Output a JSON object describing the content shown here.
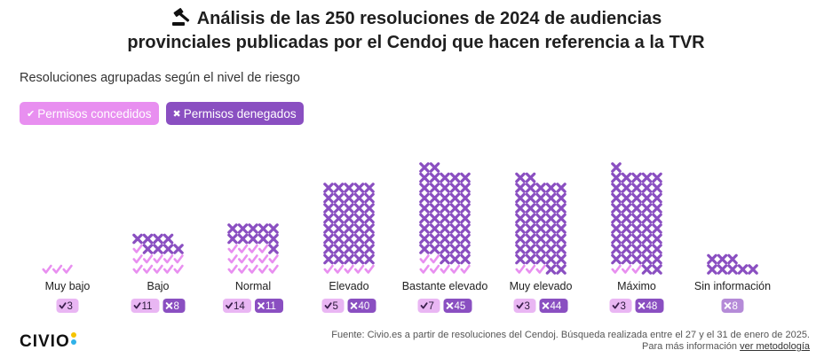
{
  "title_line1": "Análisis de las 250 resoluciones de 2024 de audiencias",
  "title_line2": "provinciales publicadas por el Cendoj que hacen referencia a la TVR",
  "subtitle": "Resoluciones agrupadas según el nivel de riesgo",
  "legend": {
    "granted_label": "Permisos concedidos",
    "denied_label": "Permisos denegados",
    "granted_symbol": "✔",
    "denied_symbol": "✖"
  },
  "colors": {
    "granted": "#e88ff0",
    "denied": "#8a4fc1",
    "granted_badge": "#e9b6f3",
    "denied_badge": "#8a4fc1",
    "single_badge": "#b58bd8"
  },
  "chart_data": {
    "type": "waffle",
    "units_per_row": 5,
    "categories": [
      "Muy bajo",
      "Bajo",
      "Normal",
      "Elevado",
      "Bastante elevado",
      "Muy elevado",
      "Máximo",
      "Sin información"
    ],
    "series": [
      {
        "name": "Permisos concedidos",
        "values": [
          3,
          11,
          14,
          5,
          7,
          3,
          3,
          0
        ]
      },
      {
        "name": "Permisos denegados",
        "values": [
          0,
          8,
          11,
          40,
          45,
          44,
          48,
          8
        ]
      }
    ]
  },
  "badges": [
    [
      "3"
    ],
    [
      "11",
      "8"
    ],
    [
      "14",
      "11"
    ],
    [
      "5",
      "40"
    ],
    [
      "7",
      "45"
    ],
    [
      "3",
      "44"
    ],
    [
      "3",
      "48"
    ],
    [
      "8"
    ]
  ],
  "logo": "CIVIO",
  "source_line1": "Fuente: Civio.es a partir de resoluciones del Cendoj. Búsqueda realizada entre el 27 y el 31 de enero de 2025.",
  "source_line2_prefix": "Para más información",
  "source_link": "ver metodología"
}
